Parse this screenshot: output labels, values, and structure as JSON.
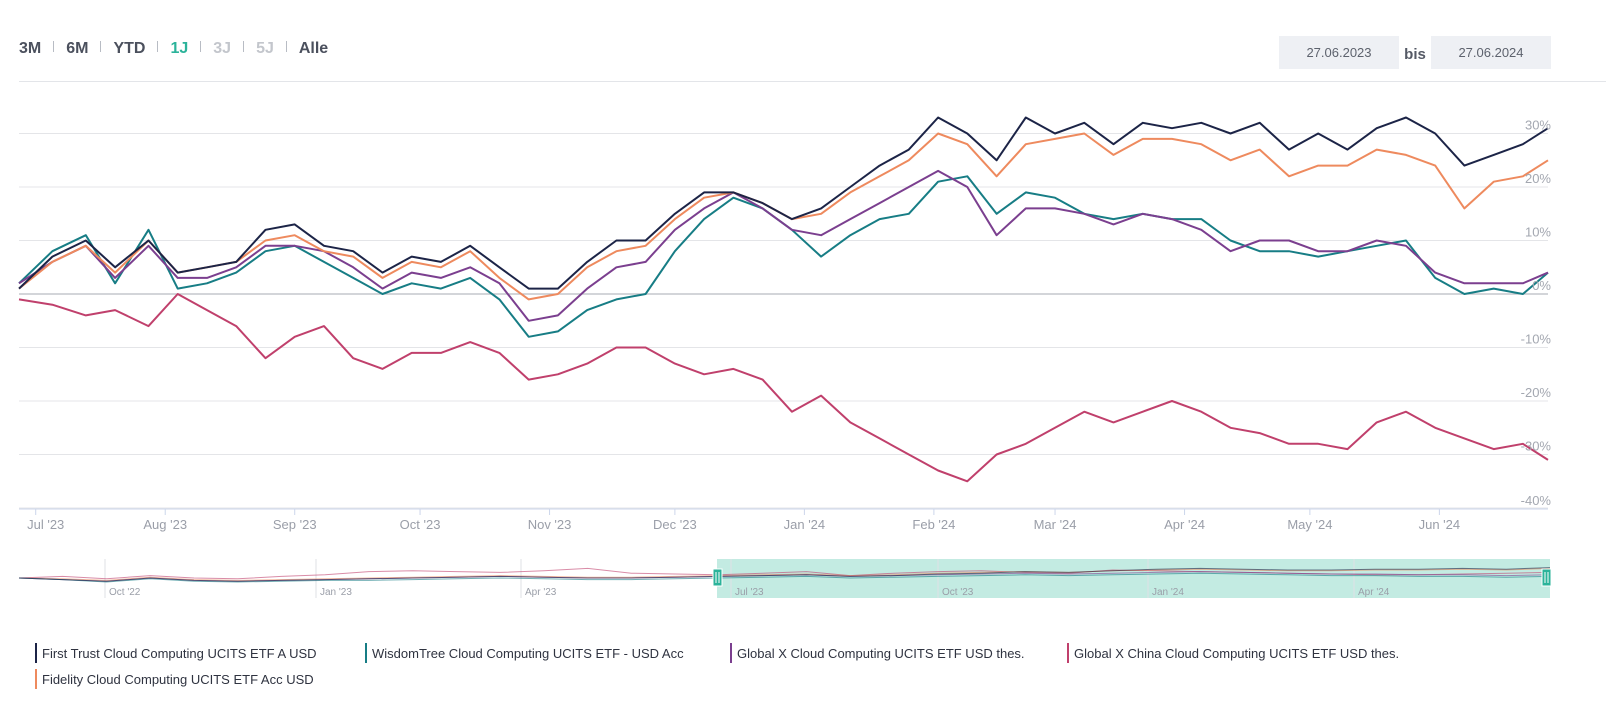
{
  "range_selector": {
    "buttons": [
      {
        "label": "3M",
        "state": "normal"
      },
      {
        "label": "6M",
        "state": "normal"
      },
      {
        "label": "YTD",
        "state": "normal"
      },
      {
        "label": "1J",
        "state": "active"
      },
      {
        "label": "3J",
        "state": "disabled"
      },
      {
        "label": "5J",
        "state": "disabled"
      },
      {
        "label": "Alle",
        "state": "normal"
      }
    ],
    "from_date": "27.06.2023",
    "separator": "bis",
    "to_date": "27.06.2024"
  },
  "colors": {
    "accent": "#2bb39a",
    "navigator_fill": "#c3ebe2"
  },
  "navigator": {
    "labels": [
      "Oct '22",
      "Jan '23",
      "Apr '23",
      "Jul '23",
      "Oct '23",
      "Jan '24",
      "Apr '24"
    ]
  },
  "chart_data": {
    "type": "line",
    "title": "",
    "xlabel": "",
    "ylabel": "",
    "ylim": [
      -40,
      35
    ],
    "grid": true,
    "legend_position": "bottom",
    "x_ticks": [
      "Jul '23",
      "Aug '23",
      "Sep '23",
      "Oct '23",
      "Nov '23",
      "Dec '23",
      "Jan '24",
      "Feb '24",
      "Mar '24",
      "Apr '24",
      "May '24",
      "Jun '24"
    ],
    "y_ticks": [
      "30%",
      "20%",
      "10%",
      "0%",
      "-10%",
      "-20%",
      "-30%",
      "-40%"
    ],
    "y_tick_values": [
      30,
      20,
      10,
      0,
      -10,
      -20,
      -30,
      -40
    ],
    "x": [
      "2023-06-27",
      "2023-07-05",
      "2023-07-13",
      "2023-07-20",
      "2023-07-28",
      "2023-08-04",
      "2023-08-11",
      "2023-08-18",
      "2023-08-25",
      "2023-09-01",
      "2023-09-08",
      "2023-09-15",
      "2023-09-22",
      "2023-09-29",
      "2023-10-06",
      "2023-10-13",
      "2023-10-20",
      "2023-10-27",
      "2023-11-03",
      "2023-11-10",
      "2023-11-17",
      "2023-11-24",
      "2023-12-01",
      "2023-12-08",
      "2023-12-15",
      "2023-12-22",
      "2023-12-29",
      "2024-01-05",
      "2024-01-12",
      "2024-01-19",
      "2024-01-26",
      "2024-02-02",
      "2024-02-09",
      "2024-02-16",
      "2024-02-23",
      "2024-03-01",
      "2024-03-08",
      "2024-03-15",
      "2024-03-22",
      "2024-03-29",
      "2024-04-05",
      "2024-04-12",
      "2024-04-19",
      "2024-04-26",
      "2024-05-03",
      "2024-05-10",
      "2024-05-17",
      "2024-05-24",
      "2024-05-31",
      "2024-06-07",
      "2024-06-14",
      "2024-06-21",
      "2024-06-27"
    ],
    "series": [
      {
        "name": "First Trust Cloud Computing UCITS ETF A USD",
        "color": "#1c2447",
        "values": [
          1,
          7,
          10,
          5,
          10,
          4,
          5,
          6,
          12,
          13,
          9,
          8,
          4,
          7,
          6,
          9,
          5,
          1,
          1,
          6,
          10,
          10,
          15,
          19,
          19,
          17,
          14,
          16,
          20,
          24,
          27,
          33,
          30,
          25,
          33,
          30,
          32,
          28,
          32,
          31,
          32,
          30,
          32,
          27,
          30,
          27,
          31,
          33,
          30,
          24,
          26,
          28,
          31
        ]
      },
      {
        "name": "WisdomTree Cloud Computing UCITS ETF - USD Acc",
        "color": "#177d85",
        "values": [
          2,
          8,
          11,
          2,
          12,
          1,
          2,
          4,
          8,
          9,
          6,
          3,
          0,
          2,
          1,
          3,
          -1,
          -8,
          -7,
          -3,
          -1,
          0,
          8,
          14,
          18,
          16,
          12,
          7,
          11,
          14,
          15,
          21,
          22,
          15,
          19,
          18,
          15,
          14,
          15,
          14,
          14,
          10,
          8,
          8,
          7,
          8,
          9,
          10,
          3,
          0,
          1,
          0,
          4
        ]
      },
      {
        "name": "Global X Cloud Computing UCITS ETF USD thes.",
        "color": "#7b3f8f",
        "values": [
          2,
          6,
          9,
          3,
          9,
          3,
          3,
          5,
          9,
          9,
          8,
          5,
          1,
          4,
          3,
          5,
          2,
          -5,
          -4,
          1,
          5,
          6,
          12,
          16,
          19,
          16,
          12,
          11,
          14,
          17,
          20,
          23,
          20,
          11,
          16,
          16,
          15,
          13,
          15,
          14,
          12,
          8,
          10,
          10,
          8,
          8,
          10,
          9,
          4,
          2,
          2,
          2,
          4
        ]
      },
      {
        "name": "Global X China Cloud Computing UCITS ETF USD thes.",
        "color": "#c0406c",
        "values": [
          -1,
          -2,
          -4,
          -3,
          -6,
          0,
          -3,
          -6,
          -12,
          -8,
          -6,
          -12,
          -14,
          -11,
          -11,
          -9,
          -11,
          -16,
          -15,
          -13,
          -10,
          -10,
          -13,
          -15,
          -14,
          -16,
          -22,
          -19,
          -24,
          -27,
          -30,
          -33,
          -35,
          -30,
          -28,
          -25,
          -22,
          -24,
          -22,
          -20,
          -22,
          -25,
          -26,
          -28,
          -28,
          -29,
          -24,
          -22,
          -25,
          -27,
          -29,
          -28,
          -31
        ]
      },
      {
        "name": "Fidelity Cloud Computing UCITS ETF Acc USD",
        "color": "#ee8a5e",
        "values": [
          1,
          6,
          9,
          4,
          10,
          4,
          5,
          6,
          10,
          11,
          8,
          7,
          3,
          6,
          5,
          8,
          3,
          -1,
          0,
          5,
          8,
          9,
          14,
          18,
          19,
          17,
          14,
          15,
          19,
          22,
          25,
          30,
          28,
          22,
          28,
          29,
          30,
          26,
          29,
          29,
          28,
          25,
          27,
          22,
          24,
          24,
          27,
          26,
          24,
          16,
          21,
          22,
          25
        ]
      }
    ]
  }
}
